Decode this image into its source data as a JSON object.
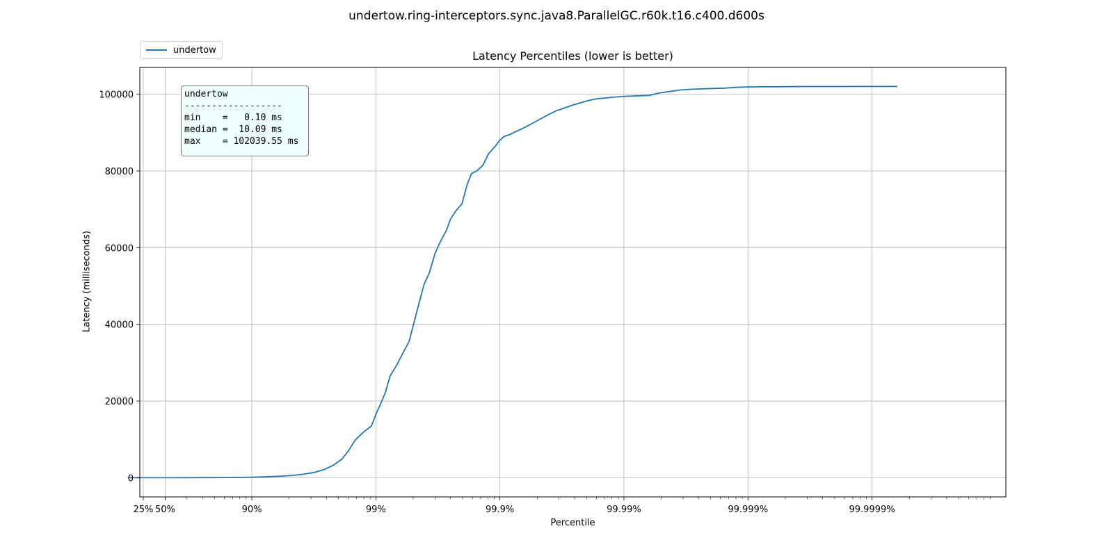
{
  "figure_title": "undertow.ring-interceptors.sync.java8.ParallelGC.r60k.t16.c400.d600s",
  "chart_data": {
    "type": "line",
    "title": "Latency Percentiles (lower is better)",
    "xlabel": "Percentile",
    "ylabel": "Latency (milliseconds)",
    "x_scale": "log of 1/(1-p)",
    "xlim": [
      1.25,
      12000000
    ],
    "ylim": [
      -5000,
      107000
    ],
    "grid": true,
    "legend_position": "upper-left, above plot",
    "x_ticks": [
      {
        "value": 1.333,
        "label": "25%"
      },
      {
        "value": 2,
        "label": "50%"
      },
      {
        "value": 10,
        "label": "90%"
      },
      {
        "value": 100,
        "label": "99%"
      },
      {
        "value": 1000,
        "label": "99.9%"
      },
      {
        "value": 10000,
        "label": "99.99%"
      },
      {
        "value": 100000,
        "label": "99.999%"
      },
      {
        "value": 1000000,
        "label": "99.9999%"
      }
    ],
    "y_ticks": [
      {
        "value": 0,
        "label": "0"
      },
      {
        "value": 20000,
        "label": "20000"
      },
      {
        "value": 40000,
        "label": "40000"
      },
      {
        "value": 60000,
        "label": "60000"
      },
      {
        "value": 80000,
        "label": "80000"
      },
      {
        "value": 100000,
        "label": "100000"
      }
    ],
    "series": [
      {
        "name": "undertow",
        "color": "#1f77b4",
        "points": [
          [
            1.0,
            0.1
          ],
          [
            1.3,
            2
          ],
          [
            2,
            10
          ],
          [
            3,
            15
          ],
          [
            5,
            40
          ],
          [
            7,
            80
          ],
          [
            10,
            150
          ],
          [
            13,
            250
          ],
          [
            17,
            400
          ],
          [
            21,
            600
          ],
          [
            26,
            900
          ],
          [
            32,
            1400
          ],
          [
            38,
            2100
          ],
          [
            45,
            3200
          ],
          [
            53,
            4800
          ],
          [
            60,
            7000
          ],
          [
            68,
            9800
          ],
          [
            80,
            12000
          ],
          [
            92,
            13500
          ],
          [
            100,
            16500
          ],
          [
            110,
            19500
          ],
          [
            120,
            22500
          ],
          [
            130,
            26500
          ],
          [
            148,
            29500
          ],
          [
            165,
            32500
          ],
          [
            185,
            35500
          ],
          [
            205,
            41000
          ],
          [
            225,
            46000
          ],
          [
            245,
            50500
          ],
          [
            270,
            53500
          ],
          [
            300,
            58500
          ],
          [
            330,
            61500
          ],
          [
            370,
            64500
          ],
          [
            400,
            67500
          ],
          [
            440,
            69500
          ],
          [
            495,
            71500
          ],
          [
            545,
            76500
          ],
          [
            590,
            79300
          ],
          [
            650,
            80000
          ],
          [
            730,
            81500
          ],
          [
            810,
            84500
          ],
          [
            920,
            86500
          ],
          [
            1000,
            88000
          ],
          [
            1080,
            89000
          ],
          [
            1200,
            89500
          ],
          [
            1350,
            90300
          ],
          [
            1550,
            91200
          ],
          [
            1800,
            92300
          ],
          [
            2100,
            93500
          ],
          [
            2500,
            94800
          ],
          [
            2850,
            95700
          ],
          [
            3300,
            96400
          ],
          [
            3800,
            97100
          ],
          [
            4500,
            97800
          ],
          [
            5200,
            98400
          ],
          [
            6000,
            98800
          ],
          [
            7000,
            99000
          ],
          [
            8000,
            99200
          ],
          [
            9500,
            99400
          ],
          [
            11000,
            99500
          ],
          [
            13000,
            99600
          ],
          [
            16000,
            99700
          ],
          [
            19000,
            100300
          ],
          [
            23000,
            100700
          ],
          [
            28000,
            101100
          ],
          [
            34000,
            101300
          ],
          [
            42000,
            101400
          ],
          [
            52000,
            101500
          ],
          [
            65000,
            101600
          ],
          [
            80000,
            101800
          ],
          [
            100000,
            101900
          ],
          [
            130000,
            101950
          ],
          [
            170000,
            101970
          ],
          [
            230000,
            101990
          ],
          [
            300000,
            102010
          ],
          [
            400000,
            102020
          ],
          [
            550000,
            102025
          ],
          [
            800000,
            102030
          ],
          [
            1200000,
            102035
          ],
          [
            1600000,
            102039.55
          ]
        ]
      }
    ],
    "stats_box": {
      "lines": [
        "undertow",
        "------------------",
        "min    =   0.10 ms",
        "median =  10.09 ms",
        "max    = 102039.55 ms"
      ]
    }
  }
}
